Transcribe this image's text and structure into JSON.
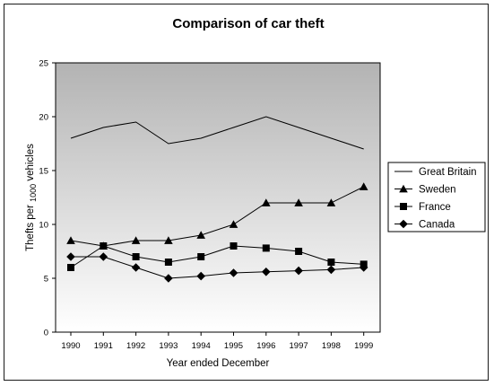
{
  "chart_data": {
    "type": "line",
    "title": "Comparison of car theft",
    "xlabel": "Year ended December",
    "ylabel": "Thefts per 1000 vehicles",
    "ylabel_parts": {
      "prefix": "Thefts per ",
      "sub": "1000",
      "suffix": " vehicles"
    },
    "categories": [
      "1990",
      "1991",
      "1992",
      "1993",
      "1994",
      "1995",
      "1996",
      "1997",
      "1998",
      "1999"
    ],
    "yticks": [
      "0",
      "5",
      "10",
      "15",
      "20",
      "25"
    ],
    "ylim": [
      0,
      25
    ],
    "grid": false,
    "legend_position": "right",
    "series": [
      {
        "name": "Great Britain",
        "marker": "none",
        "values": [
          18,
          19,
          19.5,
          17.5,
          18,
          19,
          20,
          19,
          18,
          17
        ]
      },
      {
        "name": "Sweden",
        "marker": "triangle",
        "values": [
          8.5,
          8,
          8.5,
          8.5,
          9,
          10,
          12,
          12,
          12,
          13.5
        ]
      },
      {
        "name": "France",
        "marker": "square",
        "values": [
          6,
          8,
          7,
          6.5,
          7,
          8,
          7.8,
          7.5,
          6.5,
          6.3
        ]
      },
      {
        "name": "Canada",
        "marker": "diamond",
        "values": [
          7,
          7,
          6,
          5,
          5.2,
          5.5,
          5.6,
          5.7,
          5.8,
          6
        ]
      }
    ]
  }
}
